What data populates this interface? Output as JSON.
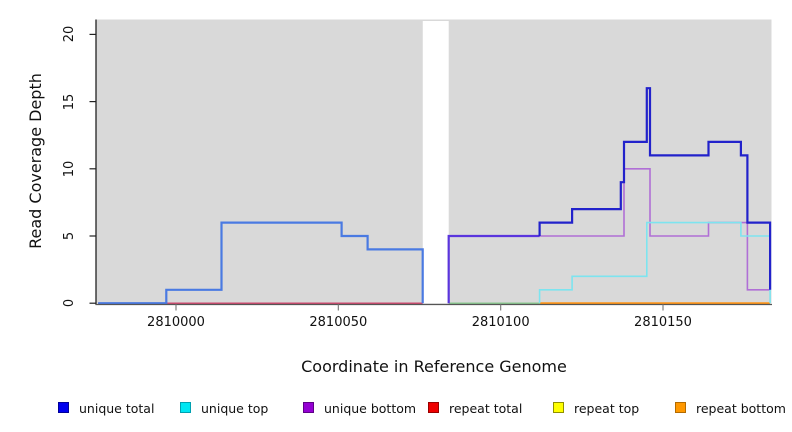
{
  "axes": {
    "x_title": "Coordinate in Reference Genome",
    "y_title": "Read Coverage Depth",
    "x_tick_labels": [
      "2810000",
      "2810050",
      "2810100",
      "2810150"
    ],
    "y_tick_labels": [
      "0",
      "5",
      "10",
      "15",
      "20"
    ]
  },
  "legend": {
    "items": [
      {
        "label": "unique total",
        "fill": "#0000ee",
        "border": "#000099"
      },
      {
        "label": "unique top",
        "fill": "#00e6f2",
        "border": "#00a0b0"
      },
      {
        "label": "unique bottom",
        "fill": "#9400d3",
        "border": "#5e0087"
      },
      {
        "label": "repeat total",
        "fill": "#ee0000",
        "border": "#990000"
      },
      {
        "label": "repeat top",
        "fill": "#ffff00",
        "border": "#909000"
      },
      {
        "label": "repeat bottom",
        "fill": "#ff9800",
        "border": "#b36b00"
      }
    ]
  },
  "chart_data": {
    "type": "line",
    "subtype": "step-after coverage plot",
    "title": "",
    "xlabel": "Coordinate in Reference Genome",
    "ylabel": "Read Coverage Depth",
    "xlim": [
      2809976,
      2810183
    ],
    "ylim": [
      0,
      21
    ],
    "x_ticks": [
      2810000,
      2810050,
      2810100,
      2810150
    ],
    "y_ticks": [
      0,
      5,
      10,
      15,
      20
    ],
    "panel_bg": "#d9d9d9",
    "grid": false,
    "legend_position": "bottom",
    "gap_region": {
      "x_start": 2810076,
      "x_end": 2810084,
      "fill": "#ffffff"
    },
    "series": [
      {
        "id": "repeat-total",
        "legend": "repeat total",
        "line_color": "#d04a70",
        "width": 1.5,
        "points": [
          [
            2809976,
            0
          ],
          [
            2810076,
            0
          ]
        ]
      },
      {
        "id": "repeat-top",
        "legend": "repeat top",
        "line_color": "#8bc98f",
        "width": 1.5,
        "points": [
          [
            2810084,
            0
          ],
          [
            2810112,
            0
          ]
        ]
      },
      {
        "id": "repeat-bottom",
        "legend": "repeat bottom",
        "line_color": "#ff9517",
        "width": 1.8,
        "points": [
          [
            2810112,
            0
          ],
          [
            2810183,
            0
          ]
        ]
      },
      {
        "id": "unique-bottom",
        "legend": "unique bottom",
        "line_color": "#b06fd6",
        "width": 1.6,
        "points": [
          [
            2810084,
            0
          ],
          [
            2810084,
            5
          ],
          [
            2810138,
            10
          ],
          [
            2810146,
            5
          ],
          [
            2810164,
            6
          ],
          [
            2810176,
            1
          ],
          [
            2810183,
            1
          ]
        ]
      },
      {
        "id": "unique-top",
        "legend": "unique top",
        "line_color": "#7de4ef",
        "width": 1.6,
        "points": [
          [
            2810112,
            0
          ],
          [
            2810112,
            1
          ],
          [
            2810122,
            2
          ],
          [
            2810145,
            6
          ],
          [
            2810174,
            5
          ],
          [
            2810183,
            5
          ],
          [
            2810183,
            0
          ]
        ]
      },
      {
        "id": "unique-total-left",
        "legend": "unique total",
        "line_color": "#4a7ae2",
        "width": 2.2,
        "points": [
          [
            2809976,
            0
          ],
          [
            2809997,
            1
          ],
          [
            2810014,
            6
          ],
          [
            2810051,
            5
          ],
          [
            2810059,
            4
          ],
          [
            2810076,
            4
          ],
          [
            2810076,
            0
          ]
        ]
      },
      {
        "id": "unique-total-mid",
        "legend": "unique total",
        "line_color": "#5a35dd",
        "width": 2.2,
        "points": [
          [
            2810084,
            0
          ],
          [
            2810084,
            5
          ],
          [
            2810112,
            5
          ]
        ]
      },
      {
        "id": "unique-total-right",
        "legend": "unique total",
        "line_color": "#2222cb",
        "width": 2.2,
        "points": [
          [
            2810112,
            5
          ],
          [
            2810112,
            6
          ],
          [
            2810122,
            7
          ],
          [
            2810137,
            9
          ],
          [
            2810138,
            12
          ],
          [
            2810145,
            16
          ],
          [
            2810146,
            11
          ],
          [
            2810164,
            12
          ],
          [
            2810174,
            11
          ],
          [
            2810176,
            6
          ],
          [
            2810183,
            6
          ],
          [
            2810183,
            1
          ]
        ]
      }
    ]
  }
}
